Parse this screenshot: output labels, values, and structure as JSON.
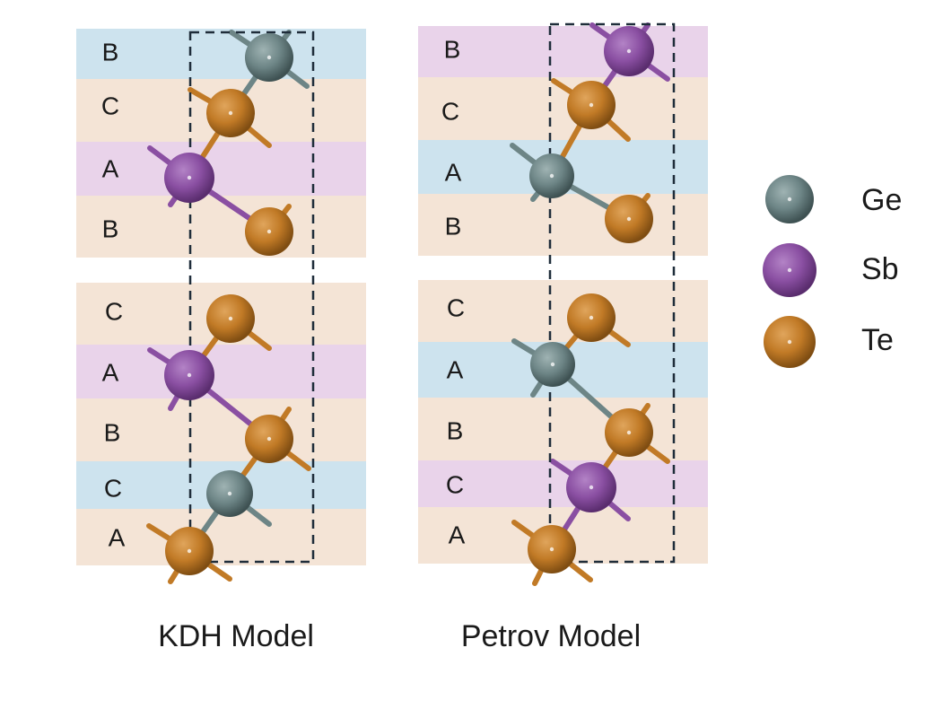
{
  "colors": {
    "band_ge": "#cde3ee",
    "band_sb": "#e9d3ea",
    "band_te": "#f4e4d6",
    "ge": "#6d8586",
    "sb": "#8a4fa2",
    "te": "#c17a26",
    "cell_border": "#1f2d3a"
  },
  "legend": [
    {
      "element": "Ge",
      "label": "Ge",
      "color_key": "ge"
    },
    {
      "element": "Sb",
      "label": "Sb",
      "color_key": "sb"
    },
    {
      "element": "Te",
      "label": "Te",
      "color_key": "te"
    }
  ],
  "models": [
    {
      "title": "KDH Model",
      "blocks": [
        {
          "layers": [
            {
              "label": "B",
              "band": "Ge"
            },
            {
              "label": "C",
              "band": "Te"
            },
            {
              "label": "A",
              "band": "Sb"
            },
            {
              "label": "B",
              "band": "Te"
            }
          ]
        },
        {
          "layers": [
            {
              "label": "C",
              "band": "Te"
            },
            {
              "label": "A",
              "band": "Sb"
            },
            {
              "label": "B",
              "band": "Te"
            },
            {
              "label": "C",
              "band": "Ge"
            },
            {
              "label": "A",
              "band": "Te"
            }
          ]
        }
      ],
      "atoms": [
        "Ge",
        "Te",
        "Sb",
        "Te",
        "Te",
        "Sb",
        "Te",
        "Ge",
        "Te"
      ]
    },
    {
      "title": "Petrov Model",
      "blocks": [
        {
          "layers": [
            {
              "label": "B",
              "band": "Sb"
            },
            {
              "label": "C",
              "band": "Te"
            },
            {
              "label": "A",
              "band": "Ge"
            },
            {
              "label": "B",
              "band": "Te"
            }
          ]
        },
        {
          "layers": [
            {
              "label": "C",
              "band": "Te"
            },
            {
              "label": "A",
              "band": "Ge"
            },
            {
              "label": "B",
              "band": "Te"
            },
            {
              "label": "C",
              "band": "Sb"
            },
            {
              "label": "A",
              "band": "Te"
            }
          ]
        }
      ],
      "atoms": [
        "Sb",
        "Te",
        "Ge",
        "Te",
        "Te",
        "Ge",
        "Te",
        "Sb",
        "Te"
      ]
    }
  ]
}
